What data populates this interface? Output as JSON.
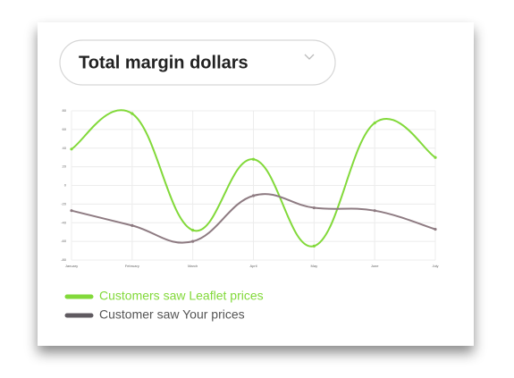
{
  "chart_data": {
    "type": "line",
    "title": "Total margin dollars",
    "categories": [
      "January",
      "February",
      "March",
      "April",
      "May",
      "June",
      "July"
    ],
    "series": [
      {
        "name": "Customers saw Leaflet prices",
        "color": "#82d93a",
        "values": [
          39,
          77,
          -48,
          28,
          -65,
          67,
          30
        ]
      },
      {
        "name": "Customer saw Your prices",
        "color": "#8e7b82",
        "values": [
          -27,
          -43,
          -60,
          -11,
          -24,
          -27,
          -47
        ]
      }
    ],
    "ylim": [
      -80,
      80
    ],
    "yticks": [
      -80,
      -60,
      -40,
      -20,
      0,
      20,
      40,
      60,
      80
    ],
    "grid": true
  }
}
